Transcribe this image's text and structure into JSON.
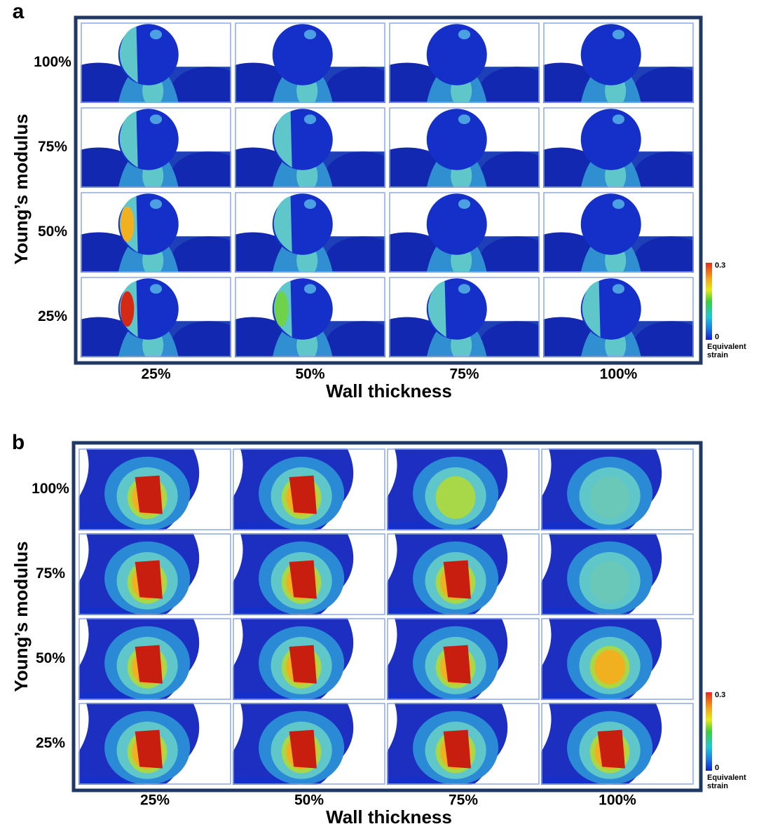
{
  "panels": [
    {
      "label": "a",
      "y_title": "Young’s modulus",
      "rows": [
        "100%",
        "75%",
        "50%",
        "25%"
      ],
      "x_title": "Wall thickness",
      "columns": [
        "25%",
        "50%",
        "75%",
        "100%"
      ],
      "colorbar": {
        "max": "0.3",
        "min": "0",
        "title_lines": [
          "Equivalent",
          "strain"
        ]
      }
    },
    {
      "label": "b",
      "y_title": "Young’s modulus",
      "rows": [
        "100%",
        "75%",
        "50%",
        "25%"
      ],
      "x_title": "Wall thickness",
      "columns": [
        "25%",
        "50%",
        "75%",
        "100%"
      ],
      "colorbar": {
        "max": "0.3",
        "min": "0",
        "title_lines": [
          "Equivalent",
          "strain"
        ]
      }
    }
  ]
}
